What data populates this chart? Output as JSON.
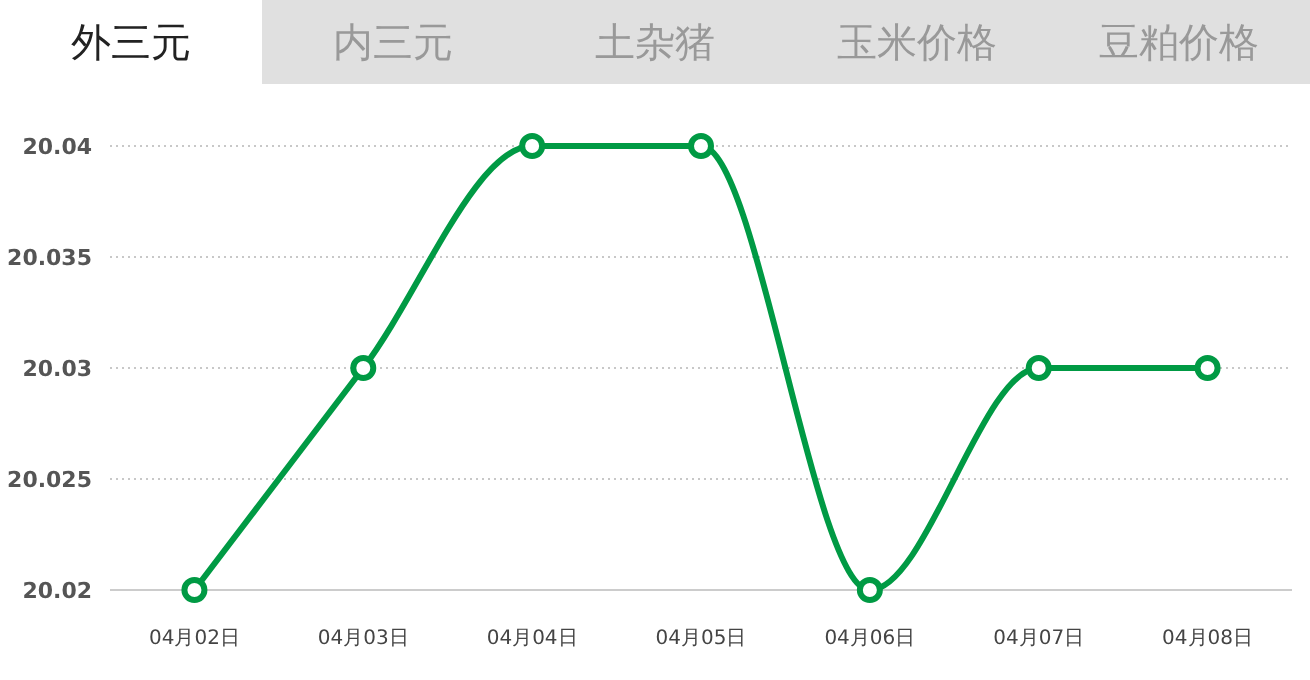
{
  "chart_data": {
    "type": "line",
    "title": "外三元",
    "annotations": [
      "内三元",
      "土杂猪",
      "玉米价格",
      "豆粕价格"
    ],
    "categories": [
      "04月02日",
      "04月03日",
      "04月04日",
      "04月05日",
      "04月06日",
      "04月07日",
      "04月08日"
    ],
    "series": [
      {
        "color": "#009a44",
        "values": [
          20.02,
          20.03,
          20.04,
          20.04,
          20.02,
          20.03,
          20.03
        ]
      }
    ],
    "ylim": [
      20.02,
      20.04
    ],
    "yticks": [
      20.02,
      20.025,
      20.03,
      20.035,
      20.04
    ],
    "grid": "y",
    "marker": "circle",
    "line_style": "solid"
  }
}
